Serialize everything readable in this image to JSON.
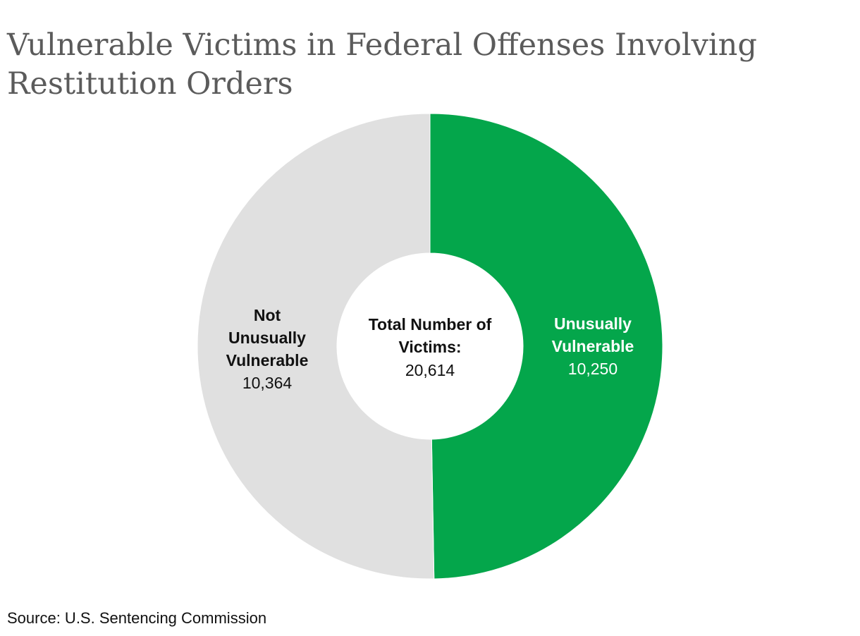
{
  "title": {
    "line1": "Vulnerable Victims in Federal Offenses Involving",
    "line2": "Restitution Orders"
  },
  "center": {
    "label_line1": "Total Number of",
    "label_line2": "Victims:",
    "total": "20,614"
  },
  "source": "Source: U.S. Sentencing Commission",
  "chart_data": {
    "type": "pie",
    "donut": true,
    "total": 20614,
    "slices": [
      {
        "name": "Unusually Vulnerable",
        "label_lines": [
          "Unusually",
          "Vulnerable"
        ],
        "value": 10250,
        "value_label": "10,250",
        "color": "#04a64b",
        "label_color": "#ffffff"
      },
      {
        "name": "Not Unusually Vulnerable",
        "label_lines": [
          "Not",
          "Unusually",
          "Vulnerable"
        ],
        "value": 10364,
        "value_label": "10,364",
        "color": "#e0e0e0",
        "label_color": "#111111"
      }
    ]
  }
}
